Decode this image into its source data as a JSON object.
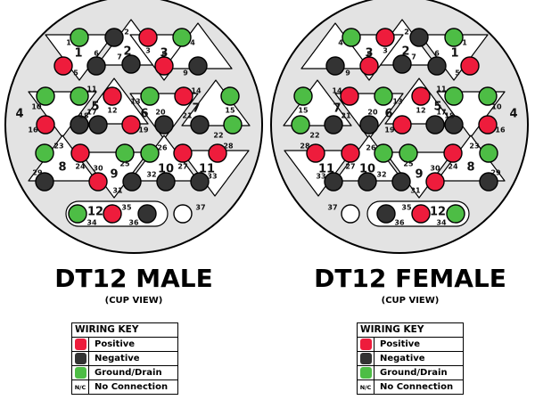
{
  "colors": {
    "positive": "#ee1c3c",
    "negative": "#333333",
    "ground": "#4dbd45",
    "nc": "#ffffff",
    "connector_fill": "#e3e3e3",
    "outline": "#000000"
  },
  "male": {
    "title": "DT12 MALE",
    "subtitle": "(CUP VIEW)",
    "pins": [
      {
        "n": "1",
        "type": "ground"
      },
      {
        "n": "2",
        "type": "negative"
      },
      {
        "n": "3",
        "type": "positive"
      },
      {
        "n": "4",
        "type": "ground"
      },
      {
        "n": "5",
        "type": "positive"
      },
      {
        "n": "6",
        "type": "negative"
      },
      {
        "n": "7",
        "type": "negative"
      },
      {
        "n": "8",
        "type": "positive"
      },
      {
        "n": "9",
        "type": "negative"
      },
      {
        "n": "10",
        "type": "ground"
      },
      {
        "n": "11",
        "type": "ground"
      },
      {
        "n": "12",
        "type": "positive"
      },
      {
        "n": "13",
        "type": "ground"
      },
      {
        "n": "14",
        "type": "positive"
      },
      {
        "n": "15",
        "type": "ground"
      },
      {
        "n": "16",
        "type": "positive"
      },
      {
        "n": "17",
        "type": "negative"
      },
      {
        "n": "18",
        "type": "negative"
      },
      {
        "n": "19",
        "type": "positive"
      },
      {
        "n": "20",
        "type": "negative"
      },
      {
        "n": "21",
        "type": "negative"
      },
      {
        "n": "22",
        "type": "ground"
      },
      {
        "n": "23",
        "type": "ground"
      },
      {
        "n": "24",
        "type": "positive"
      },
      {
        "n": "25",
        "type": "ground"
      },
      {
        "n": "26",
        "type": "ground"
      },
      {
        "n": "27",
        "type": "positive"
      },
      {
        "n": "28",
        "type": "positive"
      },
      {
        "n": "29",
        "type": "negative"
      },
      {
        "n": "30",
        "type": "positive"
      },
      {
        "n": "31",
        "type": "negative"
      },
      {
        "n": "32",
        "type": "negative"
      },
      {
        "n": "33",
        "type": "negative"
      },
      {
        "n": "34",
        "type": "ground"
      },
      {
        "n": "35",
        "type": "positive"
      },
      {
        "n": "36",
        "type": "negative"
      },
      {
        "n": "37",
        "type": "nc"
      }
    ],
    "groups": [
      "1",
      "2",
      "3",
      "4",
      "5",
      "6",
      "7",
      "8",
      "9",
      "10",
      "11",
      "12"
    ]
  },
  "female": {
    "title": "DT12 FEMALE",
    "subtitle": "(CUP VIEW)"
  },
  "wiring_key": {
    "title": "WIRING KEY",
    "rows": [
      {
        "type": "positive",
        "label": "Positive"
      },
      {
        "type": "negative",
        "label": "Negative"
      },
      {
        "type": "ground",
        "label": "Ground/Drain"
      },
      {
        "type": "nc",
        "label": "No Connection",
        "swatch_text": "N/C"
      }
    ]
  }
}
